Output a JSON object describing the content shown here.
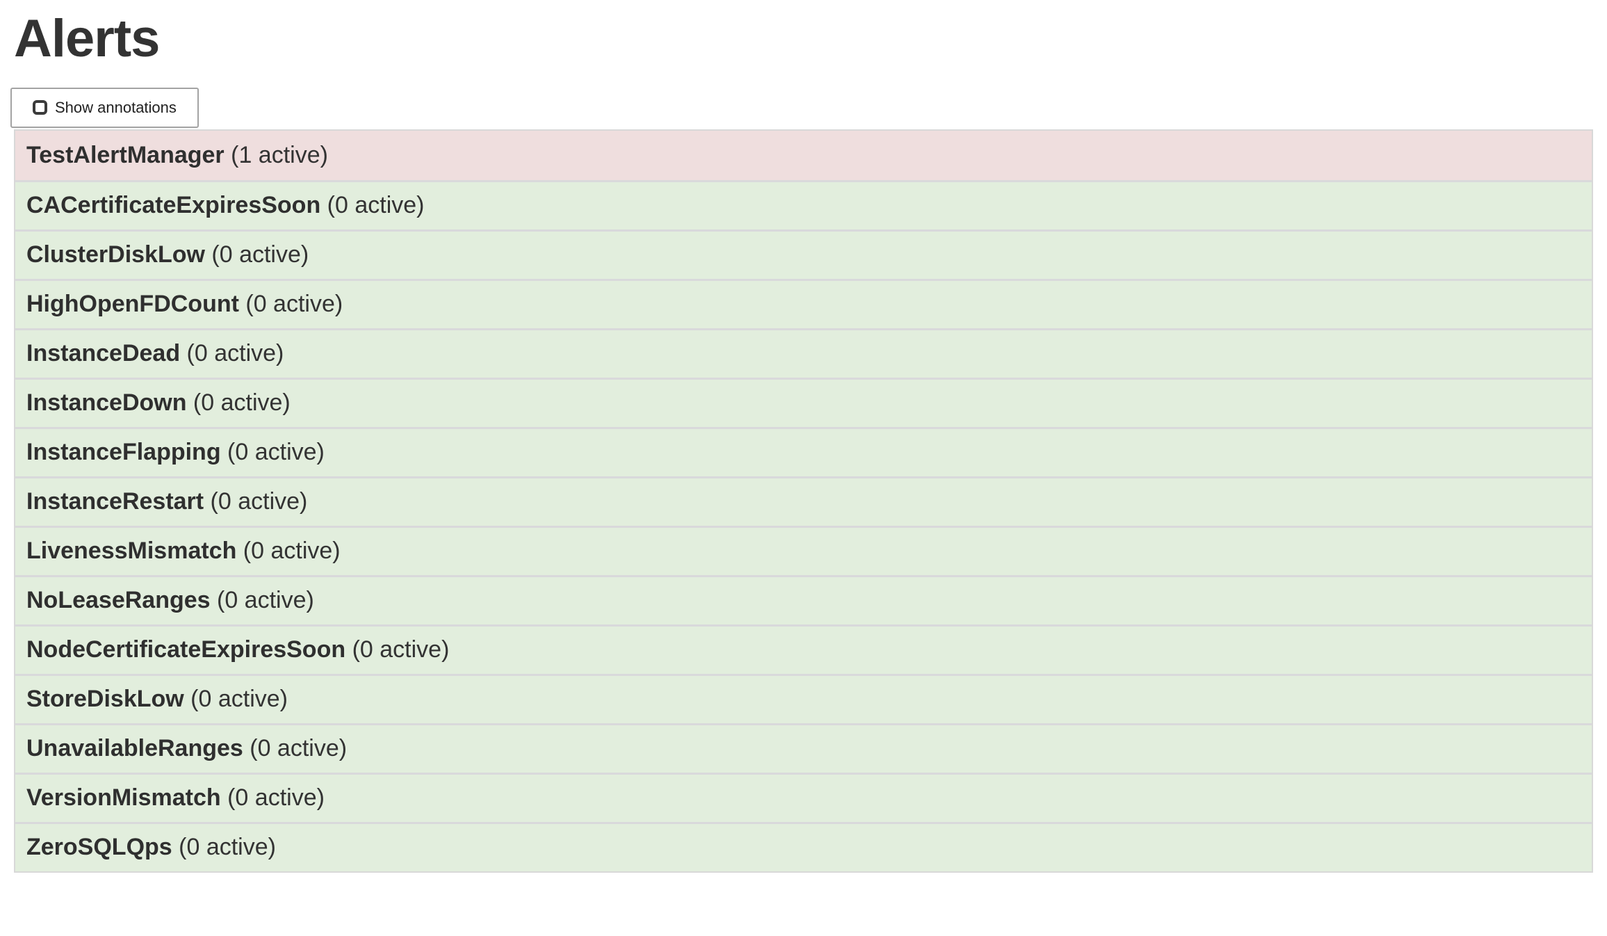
{
  "page": {
    "title": "Alerts"
  },
  "toolbar": {
    "show_annotations": {
      "label": "Show annotations",
      "checked": false
    }
  },
  "alerts": [
    {
      "name": "TestAlertManager",
      "count_label": "(1 active)",
      "severity": "danger"
    },
    {
      "name": "CACertificateExpiresSoon",
      "count_label": "(0 active)",
      "severity": "success"
    },
    {
      "name": "ClusterDiskLow",
      "count_label": "(0 active)",
      "severity": "success"
    },
    {
      "name": "HighOpenFDCount",
      "count_label": "(0 active)",
      "severity": "success"
    },
    {
      "name": "InstanceDead",
      "count_label": "(0 active)",
      "severity": "success"
    },
    {
      "name": "InstanceDown",
      "count_label": "(0 active)",
      "severity": "success"
    },
    {
      "name": "InstanceFlapping",
      "count_label": "(0 active)",
      "severity": "success"
    },
    {
      "name": "InstanceRestart",
      "count_label": "(0 active)",
      "severity": "success"
    },
    {
      "name": "LivenessMismatch",
      "count_label": "(0 active)",
      "severity": "success"
    },
    {
      "name": "NoLeaseRanges",
      "count_label": "(0 active)",
      "severity": "success"
    },
    {
      "name": "NodeCertificateExpiresSoon",
      "count_label": "(0 active)",
      "severity": "success"
    },
    {
      "name": "StoreDiskLow",
      "count_label": "(0 active)",
      "severity": "success"
    },
    {
      "name": "UnavailableRanges",
      "count_label": "(0 active)",
      "severity": "success"
    },
    {
      "name": "VersionMismatch",
      "count_label": "(0 active)",
      "severity": "success"
    },
    {
      "name": "ZeroSQLQps",
      "count_label": "(0 active)",
      "severity": "success"
    }
  ],
  "colors": {
    "danger_bg": "#efdede",
    "success_bg": "#e2eedd",
    "row_separator": "#d9d9db",
    "list_border": "#d8d8d8",
    "button_border": "#a3a3a3",
    "text": "#333333"
  }
}
